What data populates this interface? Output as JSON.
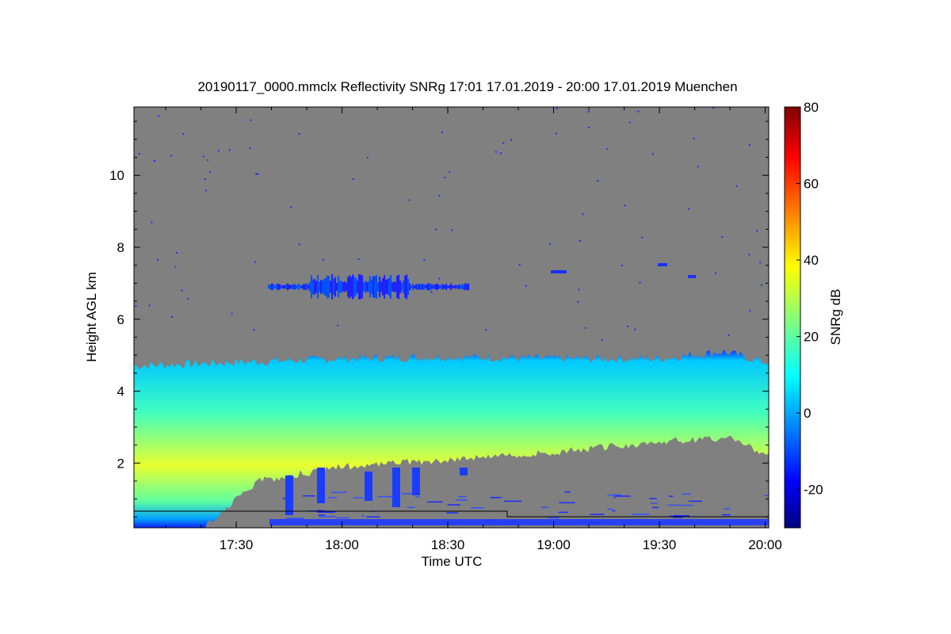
{
  "chart_data": {
    "type": "heatmap",
    "title": "20190117_0000.mmclx Reflectivity SNRg   17:01 17.01.2019 - 20:00 17.01.2019 Muenchen",
    "xlabel": "Time UTC",
    "ylabel": "Height AGL km",
    "x_range_hours": [
      17.0167,
      20.0167
    ],
    "y_range_km": [
      0.2,
      11.9
    ],
    "x_ticks": [
      {
        "value": 17.5,
        "label": "17:30"
      },
      {
        "value": 18.0,
        "label": "18:00"
      },
      {
        "value": 18.5,
        "label": "18:30"
      },
      {
        "value": 19.0,
        "label": "19:00"
      },
      {
        "value": 19.5,
        "label": "19:30"
      },
      {
        "value": 20.0,
        "label": "20:00"
      }
    ],
    "y_ticks": [
      {
        "value": 2,
        "label": "2"
      },
      {
        "value": 4,
        "label": "4"
      },
      {
        "value": 6,
        "label": "6"
      },
      {
        "value": 8,
        "label": "8"
      },
      {
        "value": 10,
        "label": "10"
      }
    ],
    "colorbar": {
      "label": "SNRg dB",
      "range": [
        -30,
        80
      ],
      "ticks": [
        {
          "value": -20,
          "label": "-20"
        },
        {
          "value": 0,
          "label": "0"
        },
        {
          "value": 20,
          "label": "20"
        },
        {
          "value": 40,
          "label": "40"
        },
        {
          "value": 60,
          "label": "60"
        },
        {
          "value": 80,
          "label": "80"
        }
      ],
      "colormap": "jet"
    },
    "background_color": "#808080",
    "features": {
      "main_cloud_top_km": [
        [
          17.02,
          4.7
        ],
        [
          17.5,
          4.8
        ],
        [
          18.0,
          4.9
        ],
        [
          18.5,
          4.95
        ],
        [
          19.0,
          4.9
        ],
        [
          19.5,
          4.9
        ],
        [
          19.8,
          5.1
        ],
        [
          20.0,
          4.8
        ]
      ],
      "main_cloud_base_km": [
        [
          17.35,
          0.2
        ],
        [
          17.6,
          1.5
        ],
        [
          18.0,
          1.9
        ],
        [
          18.5,
          2.1
        ],
        [
          19.0,
          2.3
        ],
        [
          19.5,
          2.6
        ],
        [
          19.85,
          2.7
        ],
        [
          20.0,
          2.2
        ]
      ],
      "upper_cloud": {
        "x_start": 17.65,
        "x_end": 18.6,
        "y_km": 6.9
      },
      "max_reflectivity_db": 40
    }
  }
}
